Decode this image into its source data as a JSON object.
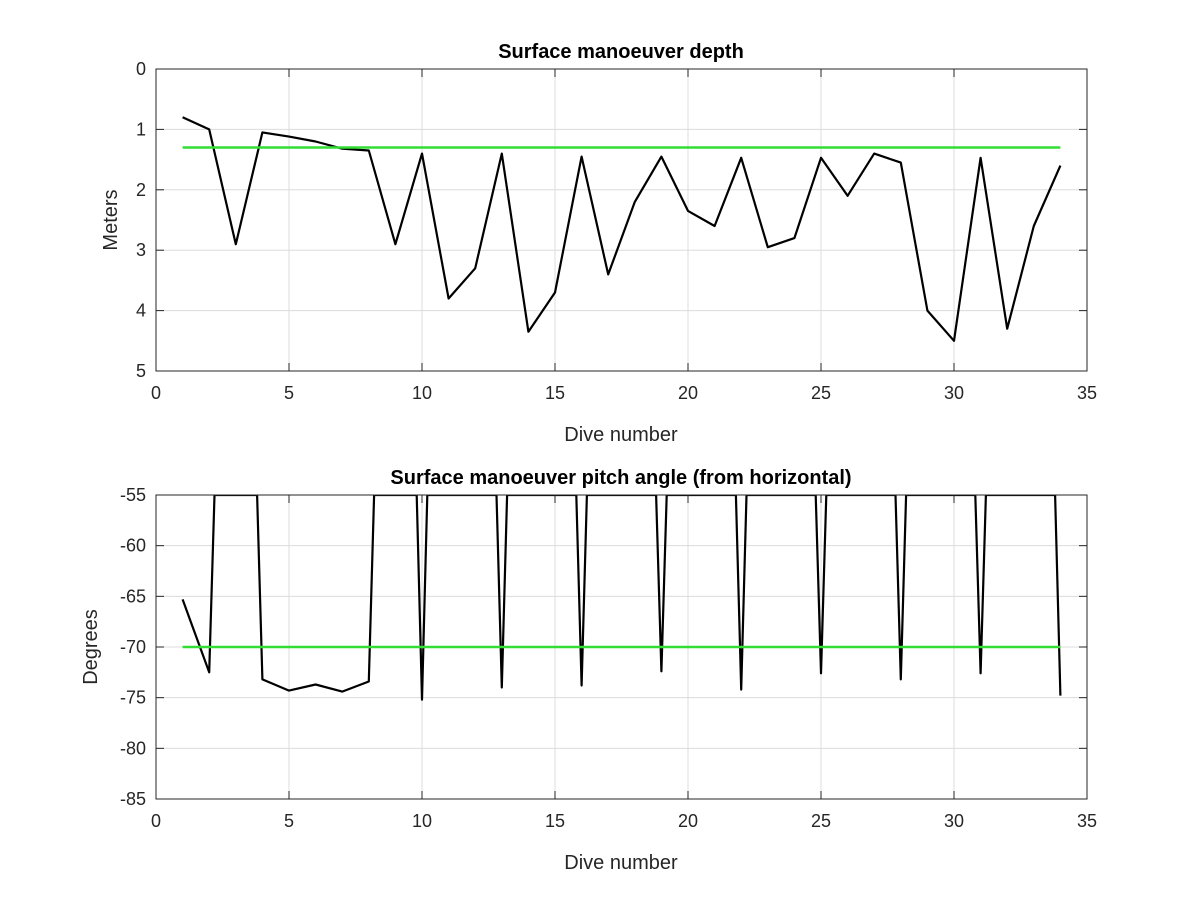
{
  "chart_data": [
    {
      "type": "line",
      "title": "Surface manoeuver depth",
      "xlabel": "Dive number",
      "ylabel": "Meters",
      "xlim": [
        0,
        35
      ],
      "ylim": [
        0,
        5
      ],
      "y_reversed": true,
      "xticks": [
        "0",
        "5",
        "10",
        "15",
        "20",
        "25",
        "30",
        "35"
      ],
      "yticks": [
        "0",
        "1",
        "2",
        "3",
        "4",
        "5"
      ],
      "grid": true,
      "series": [
        {
          "color": "#000000",
          "x": [
            1,
            2,
            3,
            4,
            5,
            6,
            7,
            8,
            9,
            10,
            11,
            12,
            13,
            14,
            15,
            16,
            17,
            18,
            19,
            20,
            21,
            22,
            23,
            24,
            25,
            26,
            27,
            28,
            29,
            30,
            31,
            32,
            33,
            34
          ],
          "values": [
            0.8,
            1.0,
            2.9,
            1.05,
            1.12,
            1.2,
            1.32,
            1.35,
            2.9,
            1.4,
            3.8,
            3.3,
            1.4,
            4.35,
            3.7,
            1.45,
            3.4,
            2.2,
            1.45,
            2.35,
            2.6,
            1.47,
            2.95,
            2.8,
            1.47,
            2.1,
            1.4,
            1.55,
            4.0,
            4.5,
            1.47,
            4.3,
            2.6,
            1.6
          ]
        },
        {
          "color": "#33dd33",
          "x": [
            1,
            34
          ],
          "values": [
            1.3,
            1.3
          ]
        }
      ]
    },
    {
      "type": "line",
      "title": "Surface manoeuver pitch angle (from horizontal)",
      "xlabel": "Dive number",
      "ylabel": "Degrees",
      "xlim": [
        0,
        35
      ],
      "ylim": [
        -85,
        -55
      ],
      "y_reversed": false,
      "xticks": [
        "0",
        "5",
        "10",
        "15",
        "20",
        "25",
        "30",
        "35"
      ],
      "yticks": [
        "-55",
        "-60",
        "-65",
        "-70",
        "-75",
        "-80",
        "-85"
      ],
      "grid": true,
      "series": [
        {
          "color": "#000000",
          "x": [
            1,
            2,
            2.2,
            3.8,
            4,
            5,
            6,
            7,
            8,
            8.2,
            9.8,
            10,
            10.2,
            12.8,
            13,
            13.2,
            15.8,
            16,
            16.2,
            18.8,
            19,
            19.2,
            21.8,
            22,
            22.2,
            24.8,
            25,
            25.2,
            27.8,
            28,
            28.2,
            30.8,
            31,
            31.2,
            33.8,
            34
          ],
          "values": [
            -65.3,
            -72.5,
            -55,
            -55,
            -73.2,
            -74.3,
            -73.7,
            -74.4,
            -73.4,
            -55,
            -55,
            -75.2,
            -55,
            -55,
            -74.0,
            -55,
            -55,
            -73.8,
            -55,
            -55,
            -72.4,
            -55,
            -55,
            -74.2,
            -55,
            -55,
            -72.6,
            -55,
            -55,
            -73.2,
            -55,
            -55,
            -72.6,
            -55,
            -55,
            -74.8
          ]
        },
        {
          "color": "#33dd33",
          "x": [
            1,
            34
          ],
          "values": [
            -70,
            -70
          ]
        }
      ]
    }
  ]
}
